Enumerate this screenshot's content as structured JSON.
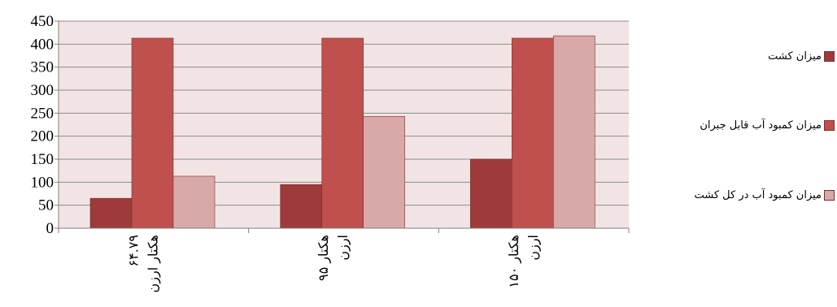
{
  "chart_data": {
    "type": "bar",
    "categories": [
      "۶۴.۷۹ هکتار ارزن",
      "۹۵ هکتار ارزن",
      "۱۵۰ هکتار ارزن"
    ],
    "category_lines": [
      [
        "۶۴.۷۹",
        "هکتار ارزن"
      ],
      [
        "۹۵ هکتار",
        "ارزن"
      ],
      [
        "۱۵۰ هکتار",
        "ارزن"
      ]
    ],
    "series": [
      {
        "name": "میزان کشت",
        "values": [
          65,
          95,
          150
        ],
        "color": "#9e3a3a"
      },
      {
        "name": "میزان کمبود آب قابل جبران",
        "values": [
          413,
          413,
          413
        ],
        "color": "#c0504d"
      },
      {
        "name": "میزان کمبود آب در کل کشت",
        "values": [
          113,
          243,
          418
        ],
        "color": "#d9a8a8"
      }
    ],
    "ylim": [
      0,
      450
    ],
    "yticks": [
      0,
      50,
      100,
      150,
      200,
      250,
      300,
      350,
      400,
      450
    ],
    "grid": true,
    "legend": "right",
    "plot_background": "#f2e4e4",
    "title": "",
    "xlabel": "",
    "ylabel": ""
  }
}
